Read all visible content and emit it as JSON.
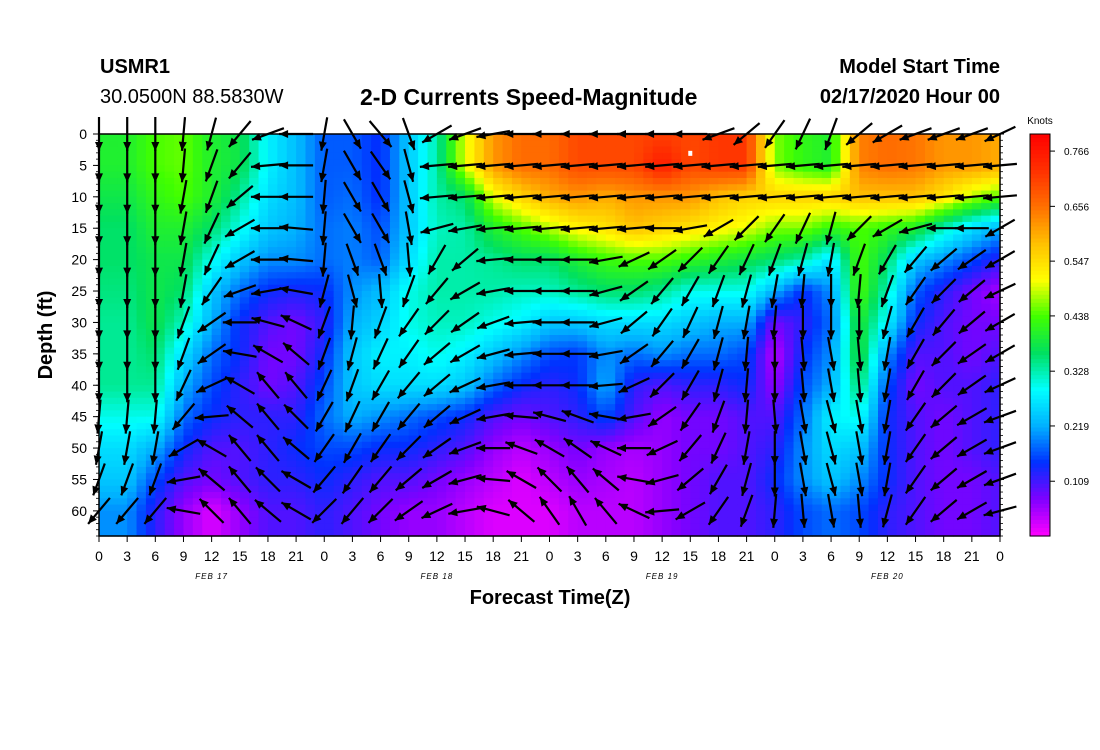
{
  "header": {
    "station": "USMR1",
    "coords": "30.0500N 88.5830W",
    "title": "2-D Currents Speed-Magnitude",
    "model_start_label": "Model Start Time",
    "model_start_value": "02/17/2020 Hour 00"
  },
  "chart_data": {
    "type": "heatmap",
    "title": "2-D Currents Speed-Magnitude",
    "xlabel": "Forecast Time(Z)",
    "ylabel": "Depth (ft)",
    "x_tick_labels": [
      "0",
      "3",
      "6",
      "9",
      "12",
      "15",
      "18",
      "21",
      "0",
      "3",
      "6",
      "9",
      "12",
      "15",
      "18",
      "21",
      "0",
      "3",
      "6",
      "9",
      "12",
      "15",
      "18",
      "21",
      "0",
      "3",
      "6",
      "9",
      "12",
      "15",
      "18",
      "21",
      "0"
    ],
    "date_labels": [
      {
        "text": "FEB 17",
        "hour": 12
      },
      {
        "text": "FEB 18",
        "hour": 36
      },
      {
        "text": "FEB 19",
        "hour": 60
      },
      {
        "text": "FEB 20",
        "hour": 84
      }
    ],
    "xlim_hours": [
      0,
      96
    ],
    "y_ticks": [
      0,
      5,
      10,
      15,
      20,
      25,
      30,
      35,
      40,
      45,
      50,
      55,
      60
    ],
    "ylim": [
      0,
      64
    ],
    "y_inverted": true,
    "colorbar": {
      "unit": "Knots",
      "min": 0.0,
      "max": 0.8,
      "tick_values": [
        0.766,
        0.656,
        0.547,
        0.438,
        0.328,
        0.219,
        0.109
      ],
      "colors": [
        "#ff00ff",
        "#8000ff",
        "#0030ff",
        "#00b0ff",
        "#00ffff",
        "#00e060",
        "#40ff00",
        "#ffff00",
        "#ffc000",
        "#ff7000",
        "#ff3000",
        "#ff0000"
      ]
    },
    "hour_columns": [
      0,
      3,
      6,
      9,
      12,
      15,
      18,
      21,
      24,
      27,
      30,
      33,
      36,
      39,
      42,
      45,
      48,
      51,
      54,
      57,
      60,
      63,
      66,
      69,
      72,
      75,
      78,
      81,
      84,
      87,
      90,
      93,
      96
    ],
    "depth_rows": [
      0,
      5,
      10,
      15,
      20,
      25,
      30,
      35,
      40,
      45,
      50,
      55,
      60
    ],
    "speed_knots": [
      [
        0.4,
        0.4,
        0.44,
        0.45,
        0.4,
        0.38,
        0.28,
        0.23,
        0.17,
        0.17,
        0.14,
        0.24,
        0.33,
        0.5,
        0.62,
        0.66,
        0.66,
        0.7,
        0.7,
        0.7,
        0.71,
        0.7,
        0.72,
        0.72,
        0.46,
        0.42,
        0.4,
        0.64,
        0.66,
        0.65,
        0.62,
        0.62,
        0.6
      ],
      [
        0.4,
        0.4,
        0.44,
        0.45,
        0.4,
        0.38,
        0.28,
        0.23,
        0.17,
        0.17,
        0.14,
        0.24,
        0.33,
        0.5,
        0.62,
        0.66,
        0.66,
        0.7,
        0.7,
        0.7,
        0.76,
        0.7,
        0.72,
        0.72,
        0.46,
        0.42,
        0.4,
        0.64,
        0.66,
        0.65,
        0.62,
        0.62,
        0.6
      ],
      [
        0.38,
        0.38,
        0.42,
        0.44,
        0.4,
        0.34,
        0.26,
        0.23,
        0.17,
        0.18,
        0.14,
        0.24,
        0.33,
        0.36,
        0.5,
        0.56,
        0.6,
        0.62,
        0.6,
        0.62,
        0.62,
        0.62,
        0.58,
        0.56,
        0.56,
        0.56,
        0.56,
        0.58,
        0.58,
        0.58,
        0.54,
        0.48,
        0.44
      ],
      [
        0.36,
        0.36,
        0.4,
        0.4,
        0.36,
        0.3,
        0.24,
        0.22,
        0.18,
        0.19,
        0.16,
        0.24,
        0.32,
        0.33,
        0.4,
        0.44,
        0.48,
        0.52,
        0.54,
        0.58,
        0.56,
        0.54,
        0.52,
        0.5,
        0.46,
        0.46,
        0.42,
        0.44,
        0.42,
        0.4,
        0.32,
        0.26,
        0.22
      ],
      [
        0.36,
        0.36,
        0.38,
        0.38,
        0.3,
        0.24,
        0.2,
        0.2,
        0.18,
        0.19,
        0.17,
        0.26,
        0.33,
        0.33,
        0.34,
        0.36,
        0.36,
        0.4,
        0.43,
        0.44,
        0.44,
        0.42,
        0.4,
        0.38,
        0.36,
        0.33,
        0.26,
        0.44,
        0.36,
        0.24,
        0.2,
        0.16,
        0.12
      ],
      [
        0.35,
        0.35,
        0.38,
        0.36,
        0.24,
        0.18,
        0.14,
        0.13,
        0.14,
        0.2,
        0.23,
        0.3,
        0.33,
        0.33,
        0.33,
        0.32,
        0.32,
        0.34,
        0.36,
        0.36,
        0.34,
        0.3,
        0.3,
        0.3,
        0.22,
        0.14,
        0.2,
        0.44,
        0.32,
        0.17,
        0.12,
        0.08,
        0.05
      ],
      [
        0.34,
        0.34,
        0.38,
        0.32,
        0.22,
        0.14,
        0.1,
        0.08,
        0.12,
        0.22,
        0.25,
        0.3,
        0.32,
        0.32,
        0.3,
        0.28,
        0.24,
        0.24,
        0.26,
        0.26,
        0.26,
        0.24,
        0.22,
        0.22,
        0.08,
        0.12,
        0.18,
        0.4,
        0.28,
        0.14,
        0.1,
        0.08,
        0.08
      ],
      [
        0.34,
        0.34,
        0.36,
        0.26,
        0.18,
        0.14,
        0.08,
        0.08,
        0.14,
        0.24,
        0.28,
        0.28,
        0.3,
        0.28,
        0.24,
        0.2,
        0.16,
        0.15,
        0.2,
        0.18,
        0.2,
        0.18,
        0.18,
        0.16,
        0.04,
        0.14,
        0.2,
        0.4,
        0.2,
        0.1,
        0.1,
        0.08,
        0.1
      ],
      [
        0.34,
        0.34,
        0.34,
        0.22,
        0.16,
        0.12,
        0.08,
        0.1,
        0.16,
        0.24,
        0.26,
        0.26,
        0.26,
        0.24,
        0.18,
        0.14,
        0.12,
        0.14,
        0.22,
        0.12,
        0.1,
        0.12,
        0.12,
        0.14,
        0.06,
        0.16,
        0.22,
        0.36,
        0.16,
        0.08,
        0.1,
        0.1,
        0.12
      ],
      [
        0.3,
        0.3,
        0.3,
        0.18,
        0.14,
        0.12,
        0.12,
        0.12,
        0.18,
        0.22,
        0.2,
        0.18,
        0.16,
        0.14,
        0.1,
        0.08,
        0.1,
        0.12,
        0.16,
        0.1,
        0.06,
        0.08,
        0.08,
        0.1,
        0.1,
        0.18,
        0.28,
        0.3,
        0.14,
        0.1,
        0.08,
        0.1,
        0.12
      ],
      [
        0.26,
        0.26,
        0.22,
        0.14,
        0.1,
        0.1,
        0.12,
        0.14,
        0.16,
        0.16,
        0.14,
        0.14,
        0.12,
        0.1,
        0.06,
        0.04,
        0.06,
        0.08,
        0.06,
        0.05,
        0.06,
        0.08,
        0.08,
        0.1,
        0.12,
        0.2,
        0.26,
        0.24,
        0.14,
        0.1,
        0.08,
        0.1,
        0.12
      ],
      [
        0.24,
        0.24,
        0.16,
        0.1,
        0.08,
        0.1,
        0.12,
        0.12,
        0.14,
        0.12,
        0.1,
        0.1,
        0.08,
        0.06,
        0.04,
        0.02,
        0.04,
        0.06,
        0.05,
        0.04,
        0.06,
        0.08,
        0.1,
        0.1,
        0.14,
        0.2,
        0.24,
        0.2,
        0.14,
        0.1,
        0.08,
        0.08,
        0.1
      ],
      [
        0.2,
        0.2,
        0.12,
        0.06,
        0.02,
        0.06,
        0.1,
        0.1,
        0.12,
        0.1,
        0.08,
        0.06,
        0.06,
        0.04,
        0.02,
        0.02,
        0.02,
        0.04,
        0.04,
        0.04,
        0.06,
        0.08,
        0.1,
        0.1,
        0.12,
        0.16,
        0.18,
        0.16,
        0.12,
        0.1,
        0.08,
        0.08,
        0.1
      ]
    ],
    "direction_deg": [
      [
        180,
        180,
        180,
        185,
        195,
        220,
        250,
        270,
        190,
        150,
        140,
        160,
        240,
        250,
        260,
        270,
        270,
        270,
        270,
        270,
        270,
        270,
        250,
        230,
        215,
        205,
        200,
        230,
        240,
        250,
        250,
        250,
        245
      ],
      [
        180,
        180,
        180,
        185,
        200,
        220,
        265,
        270,
        190,
        150,
        145,
        165,
        265,
        265,
        265,
        265,
        265,
        265,
        265,
        265,
        265,
        265,
        265,
        265,
        265,
        265,
        265,
        265,
        265,
        265,
        265,
        265,
        265
      ],
      [
        180,
        180,
        180,
        190,
        200,
        230,
        270,
        270,
        185,
        150,
        150,
        165,
        265,
        265,
        265,
        265,
        265,
        265,
        265,
        265,
        265,
        265,
        265,
        265,
        265,
        265,
        265,
        265,
        265,
        265,
        265,
        265,
        265
      ],
      [
        180,
        180,
        180,
        190,
        205,
        240,
        270,
        275,
        185,
        150,
        150,
        170,
        255,
        260,
        265,
        265,
        265,
        265,
        265,
        265,
        270,
        260,
        240,
        225,
        215,
        205,
        195,
        225,
        240,
        255,
        270,
        270,
        240
      ],
      [
        180,
        180,
        180,
        190,
        205,
        240,
        270,
        275,
        185,
        160,
        160,
        175,
        210,
        230,
        265,
        270,
        270,
        270,
        260,
        245,
        235,
        225,
        215,
        205,
        200,
        195,
        190,
        200,
        210,
        220,
        230,
        235,
        240
      ],
      [
        180,
        180,
        180,
        190,
        215,
        250,
        260,
        280,
        195,
        165,
        175,
        200,
        220,
        240,
        260,
        270,
        270,
        270,
        255,
        235,
        220,
        210,
        200,
        195,
        190,
        185,
        180,
        185,
        200,
        215,
        225,
        230,
        245
      ],
      [
        180,
        180,
        180,
        200,
        235,
        270,
        285,
        295,
        200,
        185,
        200,
        215,
        225,
        235,
        250,
        265,
        270,
        270,
        255,
        230,
        215,
        205,
        195,
        190,
        185,
        180,
        180,
        180,
        195,
        210,
        220,
        230,
        240
      ],
      [
        180,
        180,
        180,
        200,
        235,
        280,
        300,
        310,
        200,
        195,
        205,
        215,
        230,
        240,
        255,
        265,
        270,
        270,
        260,
        235,
        220,
        210,
        195,
        185,
        180,
        175,
        170,
        175,
        190,
        210,
        225,
        235,
        240
      ],
      [
        180,
        180,
        180,
        205,
        245,
        300,
        320,
        320,
        205,
        200,
        210,
        220,
        230,
        245,
        260,
        270,
        270,
        270,
        265,
        245,
        225,
        210,
        195,
        185,
        180,
        175,
        170,
        175,
        190,
        210,
        225,
        235,
        245
      ],
      [
        185,
        185,
        185,
        220,
        265,
        310,
        320,
        315,
        210,
        205,
        210,
        220,
        230,
        245,
        260,
        275,
        285,
        290,
        280,
        260,
        235,
        215,
        200,
        185,
        175,
        170,
        165,
        170,
        190,
        215,
        230,
        240,
        250
      ],
      [
        190,
        190,
        190,
        240,
        300,
        320,
        320,
        310,
        215,
        210,
        215,
        225,
        235,
        250,
        270,
        290,
        300,
        305,
        295,
        270,
        245,
        220,
        205,
        190,
        180,
        170,
        165,
        170,
        190,
        215,
        230,
        240,
        250
      ],
      [
        200,
        200,
        200,
        260,
        310,
        320,
        315,
        300,
        220,
        215,
        220,
        230,
        240,
        255,
        275,
        300,
        315,
        320,
        310,
        280,
        255,
        230,
        210,
        195,
        180,
        170,
        165,
        170,
        190,
        215,
        230,
        240,
        250
      ],
      [
        220,
        220,
        220,
        280,
        315,
        320,
        310,
        300,
        225,
        220,
        225,
        235,
        245,
        260,
        285,
        310,
        325,
        330,
        320,
        295,
        265,
        240,
        215,
        200,
        185,
        175,
        170,
        175,
        195,
        215,
        230,
        240,
        255
      ]
    ],
    "max_marker": {
      "hour": 63,
      "depth": 3
    }
  }
}
